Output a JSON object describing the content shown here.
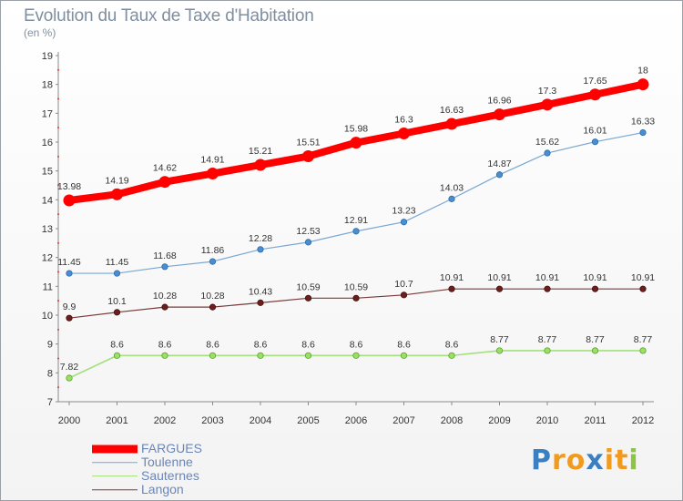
{
  "title": "Evolution du Taux de Taxe d'Habitation",
  "unit_label": "(en %)",
  "logo": {
    "letters": [
      "P",
      "r",
      "o",
      "x",
      "i",
      "t",
      "i"
    ],
    "colors": [
      "#3a7fc1",
      "#f29a1e",
      "#f29a1e",
      "#3a7fc1",
      "#f29a1e",
      "#f29a1e",
      "#8cc63f"
    ]
  },
  "chart_data": {
    "type": "line",
    "title": "Evolution du Taux de Taxe d'Habitation",
    "ylabel": "(en %)",
    "xlabel": "",
    "x": [
      2000,
      2001,
      2002,
      2003,
      2004,
      2005,
      2006,
      2007,
      2008,
      2009,
      2010,
      2011,
      2012
    ],
    "x_tick_labels": [
      "2000",
      "2001",
      "2002",
      "2003",
      "2004",
      "2005",
      "2006",
      "2007",
      "2008",
      "2009",
      "2010",
      "2011",
      "2012"
    ],
    "ylim": [
      7,
      19
    ],
    "y_ticks": [
      7,
      8,
      9,
      10,
      11,
      12,
      13,
      14,
      15,
      16,
      17,
      18,
      19
    ],
    "grid": false,
    "legend_position": "bottom-left",
    "series": [
      {
        "name": "FARGUES",
        "color": "#ff0000",
        "values": [
          13.98,
          14.19,
          14.62,
          14.91,
          15.21,
          15.51,
          15.98,
          16.3,
          16.63,
          16.96,
          17.3,
          17.65,
          18
        ],
        "labels": [
          "13.98",
          "14.19",
          "14.62",
          "14.91",
          "15.21",
          "15.51",
          "15.98",
          "16.3",
          "16.63",
          "16.96",
          "17.3",
          "17.65",
          "18"
        ]
      },
      {
        "name": "Toulenne",
        "color": "#79a7d3",
        "values": [
          11.45,
          11.45,
          11.68,
          11.86,
          12.28,
          12.53,
          12.91,
          13.23,
          14.03,
          14.87,
          15.62,
          16.01,
          16.33
        ],
        "labels": [
          "11.45",
          "11.45",
          "11.68",
          "11.86",
          "12.28",
          "12.53",
          "12.91",
          "13.23",
          "14.03",
          "14.87",
          "15.62",
          "16.01",
          "16.33"
        ]
      },
      {
        "name": "Sauternes",
        "color": "#a5e07d",
        "values": [
          7.82,
          8.6,
          8.6,
          8.6,
          8.6,
          8.6,
          8.6,
          8.6,
          8.6,
          8.77,
          8.77,
          8.77,
          8.77
        ],
        "labels": [
          "7.82",
          "8.6",
          "8.6",
          "8.6",
          "8.6",
          "8.6",
          "8.6",
          "8.6",
          "8.6",
          "8.77",
          "8.77",
          "8.77",
          "8.77"
        ]
      },
      {
        "name": "Langon",
        "color": "#7a3a3a",
        "values": [
          9.9,
          10.1,
          10.28,
          10.28,
          10.43,
          10.59,
          10.59,
          10.7,
          10.91,
          10.91,
          10.91,
          10.91,
          10.91
        ],
        "labels": [
          "9.9",
          "10.1",
          "10.28",
          "10.28",
          "10.43",
          "10.59",
          "10.59",
          "10.7",
          "10.91",
          "10.91",
          "10.91",
          "10.91",
          "10.91"
        ]
      }
    ]
  }
}
